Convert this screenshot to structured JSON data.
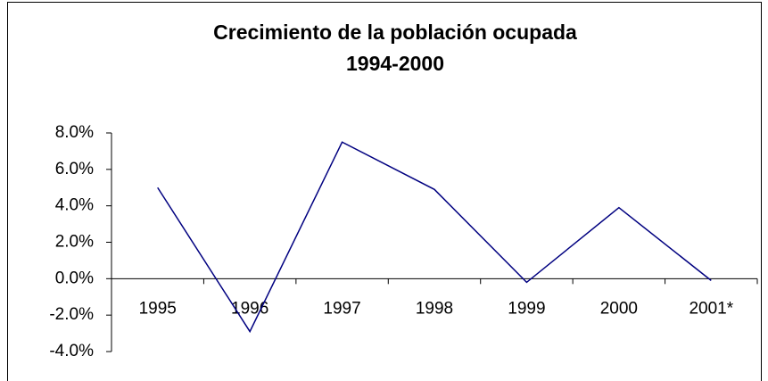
{
  "chart_data": {
    "type": "line",
    "title": "Crecimiento de la población ocupada",
    "subtitle": "1994-2000",
    "categories": [
      "1995",
      "1996",
      "1997",
      "1998",
      "1999",
      "2000",
      "2001*"
    ],
    "series": [
      {
        "color": "#000080",
        "values": [
          5.0,
          -2.9,
          7.5,
          4.9,
          -0.2,
          3.9,
          -0.1
        ]
      }
    ],
    "ylim": [
      -4,
      8
    ],
    "yticks": [
      {
        "value": -4,
        "label": "-4.0%"
      },
      {
        "value": -2,
        "label": "-2.0%"
      },
      {
        "value": 0,
        "label": "0.0%"
      },
      {
        "value": 2,
        "label": "2.0%"
      },
      {
        "value": 4,
        "label": "4.0%"
      },
      {
        "value": 6,
        "label": "6.0%"
      },
      {
        "value": 8,
        "label": "8.0%"
      }
    ],
    "grid": false
  }
}
